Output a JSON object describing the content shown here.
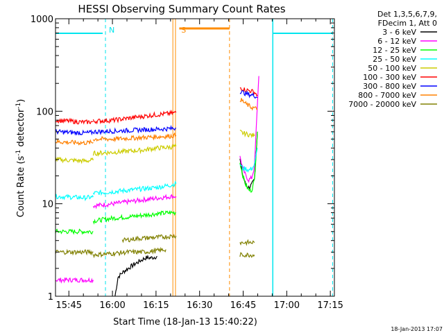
{
  "chart_data": {
    "type": "line",
    "title": "HESSI Observing Summary Count Rates",
    "xlabel": "Start Time (18-Jan-13 15:40:22)",
    "ylabel_main": "Count Rate (s",
    "ylabel_sup1": "-1",
    "ylabel_mid": " detector",
    "ylabel_sup2": "-1",
    "ylabel_end": ")",
    "yscale": "log",
    "ylim": [
      1,
      1000
    ],
    "xlim_minutes": [
      0,
      96
    ],
    "x_ticks": [
      {
        "label": "15:45",
        "m": 4.6
      },
      {
        "label": "16:00",
        "m": 19.6
      },
      {
        "label": "16:15",
        "m": 34.6
      },
      {
        "label": "16:30",
        "m": 49.6
      },
      {
        "label": "16:45",
        "m": 64.6
      },
      {
        "label": "17:00",
        "m": 79.6
      },
      {
        "label": "17:15",
        "m": 94.6
      }
    ],
    "y_ticks": [
      {
        "label": "1",
        "v": 1
      },
      {
        "label": "10",
        "v": 10
      },
      {
        "label": "100",
        "v": 100
      },
      {
        "label": "1000",
        "v": 1000
      }
    ],
    "legend_header": [
      "Det 1,3,5,6,7,9,",
      "FDecim 1, Att 0"
    ],
    "legend_position": "right",
    "series": [
      {
        "name": "3 - 6 keV",
        "color": "#000000",
        "segments": [
          [
            [
              20.5,
              1
            ],
            [
              21.5,
              1.6
            ],
            [
              23,
              1.8
            ],
            [
              25,
              2.0
            ],
            [
              27,
              2.2
            ],
            [
              29,
              2.4
            ],
            [
              31,
              2.6
            ],
            [
              33,
              2.6
            ],
            [
              35,
              2.7
            ]
          ],
          [
            [
              63.5,
              30
            ],
            [
              64.5,
              20
            ],
            [
              65.5,
              16
            ],
            [
              66.5,
              15
            ],
            [
              67.5,
              16
            ],
            [
              68.5,
              18
            ],
            [
              69.5,
              60
            ]
          ]
        ]
      },
      {
        "name": "6 - 12 keV",
        "color": "#ff00ff",
        "segments": [
          [
            [
              0,
              1.5
            ],
            [
              5,
              1.5
            ],
            [
              10,
              1.5
            ],
            [
              13,
              1.5
            ]
          ],
          [
            [
              13,
              9.5
            ],
            [
              20,
              10
            ],
            [
              25,
              10.5
            ],
            [
              30,
              11
            ],
            [
              35,
              11.5
            ],
            [
              40,
              12
            ],
            [
              41.5,
              12
            ]
          ],
          [
            [
              63.5,
              32
            ],
            [
              64.5,
              24
            ],
            [
              65.5,
              20
            ],
            [
              66.5,
              18
            ],
            [
              67.5,
              19
            ],
            [
              68.5,
              25
            ],
            [
              69.5,
              120
            ],
            [
              70,
              240
            ]
          ]
        ]
      },
      {
        "name": "12 - 25 keV",
        "color": "#00ff00",
        "segments": [
          [
            [
              0,
              5
            ],
            [
              5,
              5
            ],
            [
              10,
              5
            ],
            [
              13,
              5
            ]
          ],
          [
            [
              13,
              6.5
            ],
            [
              20,
              7
            ],
            [
              25,
              7.2
            ],
            [
              30,
              7.5
            ],
            [
              35,
              7.8
            ],
            [
              40,
              8
            ],
            [
              41.5,
              8
            ]
          ],
          [
            [
              63.5,
              28
            ],
            [
              64.5,
              20
            ],
            [
              65.5,
              16
            ],
            [
              66.5,
              14
            ],
            [
              67.5,
              14
            ],
            [
              68.5,
              18
            ],
            [
              69.5,
              60
            ]
          ]
        ]
      },
      {
        "name": "25 - 50 keV",
        "color": "#00ffff",
        "segments": [
          [
            [
              0,
              12
            ],
            [
              5,
              11.8
            ],
            [
              10,
              11.6
            ],
            [
              13,
              11.8
            ]
          ],
          [
            [
              13,
              13
            ],
            [
              20,
              13.5
            ],
            [
              25,
              14
            ],
            [
              30,
              14.5
            ],
            [
              35,
              15
            ],
            [
              40,
              16
            ],
            [
              41.5,
              16.5
            ]
          ],
          [
            [
              63.5,
              27
            ],
            [
              64.5,
              24
            ],
            [
              65.5,
              24
            ],
            [
              66.5,
              23
            ],
            [
              67.5,
              24
            ],
            [
              68.5,
              26
            ],
            [
              69.5,
              40
            ]
          ]
        ]
      },
      {
        "name": "50 - 100 keV",
        "color": "#cccc00",
        "segments": [
          [
            [
              0,
              30
            ],
            [
              5,
              29.5
            ],
            [
              10,
              29
            ],
            [
              13,
              29.5
            ]
          ],
          [
            [
              13,
              35
            ],
            [
              20,
              36
            ],
            [
              25,
              37
            ],
            [
              30,
              38
            ],
            [
              35,
              40
            ],
            [
              40,
              41
            ],
            [
              41.5,
              42
            ]
          ],
          [
            [
              63.5,
              60
            ],
            [
              64.5,
              58
            ],
            [
              65.5,
              57
            ],
            [
              66.5,
              56
            ],
            [
              67.5,
              55
            ],
            [
              68.5,
              54
            ]
          ]
        ]
      },
      {
        "name": "100 - 300 keV",
        "color": "#ff0000",
        "segments": [
          [
            [
              0,
              80
            ],
            [
              5,
              78
            ],
            [
              10,
              76
            ],
            [
              13,
              77
            ]
          ],
          [
            [
              13,
              78
            ],
            [
              20,
              80
            ],
            [
              25,
              84
            ],
            [
              30,
              88
            ],
            [
              35,
              92
            ],
            [
              40,
              95
            ],
            [
              41.5,
              97
            ]
          ],
          [
            [
              63.5,
              180
            ],
            [
              64.5,
              175
            ],
            [
              65.5,
              170
            ],
            [
              66.5,
              168
            ],
            [
              67.5,
              165
            ],
            [
              68.5,
              160
            ],
            [
              69.5,
              150
            ]
          ]
        ]
      },
      {
        "name": "300 - 800 keV",
        "color": "#0000ff",
        "segments": [
          [
            [
              0,
              60
            ],
            [
              5,
              59
            ],
            [
              10,
              58
            ],
            [
              13,
              59
            ]
          ],
          [
            [
              13,
              60
            ],
            [
              20,
              61
            ],
            [
              25,
              62
            ],
            [
              30,
              63
            ],
            [
              35,
              64
            ],
            [
              40,
              65
            ],
            [
              41.5,
              66
            ]
          ],
          [
            [
              63.5,
              165
            ],
            [
              64.5,
              160
            ],
            [
              65.5,
              155
            ],
            [
              66.5,
              152
            ],
            [
              67.5,
              150
            ],
            [
              68.5,
              148
            ],
            [
              69.5,
              140
            ]
          ]
        ]
      },
      {
        "name": "800 - 7000 keV",
        "color": "#ff8000",
        "segments": [
          [
            [
              0,
              47
            ],
            [
              5,
              46
            ],
            [
              10,
              45.5
            ],
            [
              13,
              46
            ]
          ],
          [
            [
              13,
              50
            ],
            [
              20,
              50
            ],
            [
              25,
              51
            ],
            [
              30,
              52
            ],
            [
              35,
              53
            ],
            [
              40,
              54
            ],
            [
              41.5,
              55
            ]
          ],
          [
            [
              63.5,
              135
            ],
            [
              64.5,
              128
            ],
            [
              65.5,
              120
            ],
            [
              66.5,
              115
            ],
            [
              67.5,
              110
            ],
            [
              68.5,
              108
            ],
            [
              69.5,
              105
            ]
          ]
        ]
      },
      {
        "name": "7000 - 20000 keV",
        "color": "#808000",
        "segments": [
          [
            [
              0,
              3
            ],
            [
              5,
              3
            ],
            [
              10,
              3
            ],
            [
              13,
              3
            ]
          ],
          [
            [
              13,
              2.8
            ],
            [
              20,
              2.9
            ],
            [
              25,
              3.0
            ],
            [
              30,
              3.0
            ],
            [
              35,
              3.1
            ],
            [
              38,
              3.2
            ]
          ],
          [
            [
              23,
              4
            ],
            [
              28,
              4.2
            ],
            [
              33,
              4.3
            ],
            [
              38,
              4.4
            ],
            [
              41.5,
              4.5
            ]
          ],
          [
            [
              63.5,
              3.8
            ],
            [
              64.5,
              3.8
            ],
            [
              65.5,
              3.8
            ],
            [
              66.5,
              3.8
            ],
            [
              67.5,
              3.8
            ],
            [
              68.5,
              3.8
            ]
          ],
          [
            [
              63.5,
              2.8
            ],
            [
              65,
              2.8
            ],
            [
              66.5,
              2.8
            ],
            [
              68.5,
              2.8
            ]
          ]
        ]
      }
    ],
    "annotations": [
      {
        "label": "N",
        "m": 17.2,
        "color": "#00e5ee"
      },
      {
        "label": "S",
        "m": 42.1,
        "color": "#ff8c00"
      }
    ],
    "timestamp": "18-Jan-2013 17:07"
  }
}
